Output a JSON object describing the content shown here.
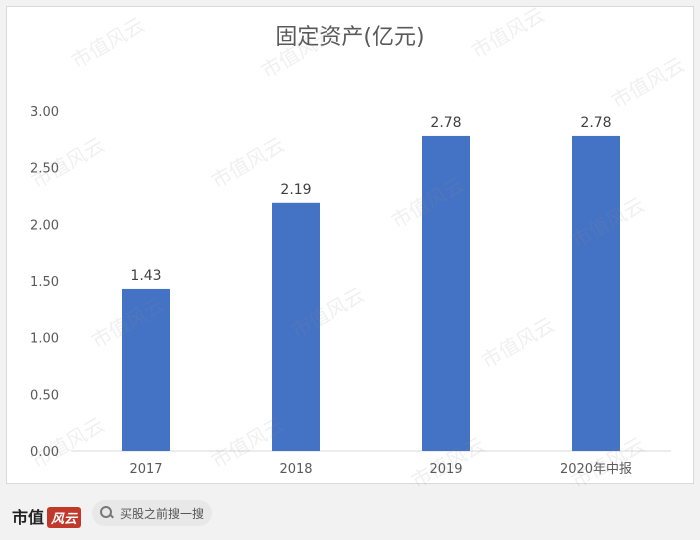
{
  "chart_data": {
    "type": "bar",
    "title": "固定资产(亿元)",
    "categories": [
      "2017",
      "2018",
      "2019",
      "2020年中报"
    ],
    "values": [
      1.43,
      2.19,
      2.78,
      2.78
    ],
    "data_labels": [
      "1.43",
      "2.19",
      "2.78",
      "2.78"
    ],
    "y_ticks": [
      "0.00",
      "0.50",
      "1.00",
      "1.50",
      "2.00",
      "2.50",
      "3.00"
    ],
    "ylim": [
      0,
      3
    ],
    "grid": false,
    "bar_color": "#4472c4"
  },
  "watermark": "市值风云",
  "footer": {
    "brand": "市值",
    "brand_badge": "风云",
    "search_text": "买股之前搜一搜"
  }
}
